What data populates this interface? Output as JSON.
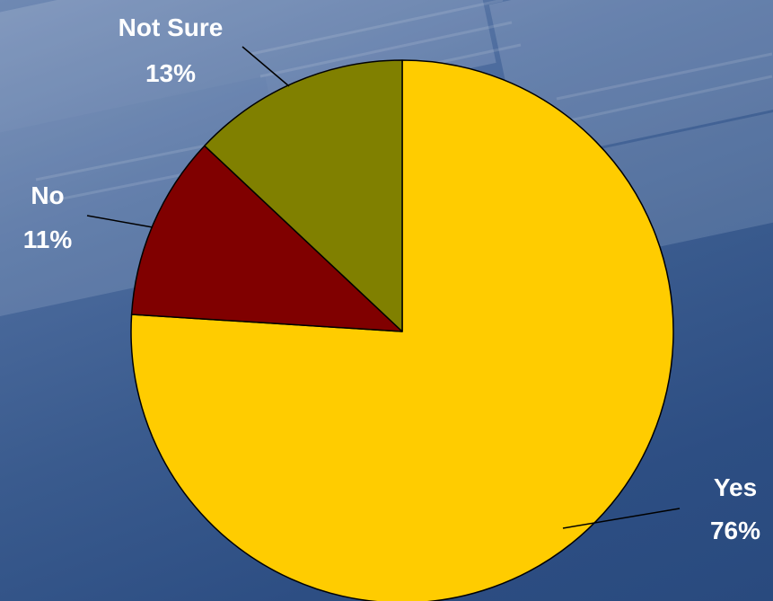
{
  "chart_data": {
    "type": "pie",
    "categories": [
      "Yes",
      "No",
      "Not Sure"
    ],
    "values": [
      76,
      11,
      13
    ],
    "value_labels": [
      "76%",
      "11%",
      "13%"
    ],
    "colors": [
      "#FFCC00",
      "#800000",
      "#808000"
    ],
    "start_angle_deg": 0,
    "direction": "clockwise",
    "title": "",
    "legend": "none"
  },
  "background": {
    "colors": [
      "#6f89b3",
      "#2d4e83"
    ]
  }
}
